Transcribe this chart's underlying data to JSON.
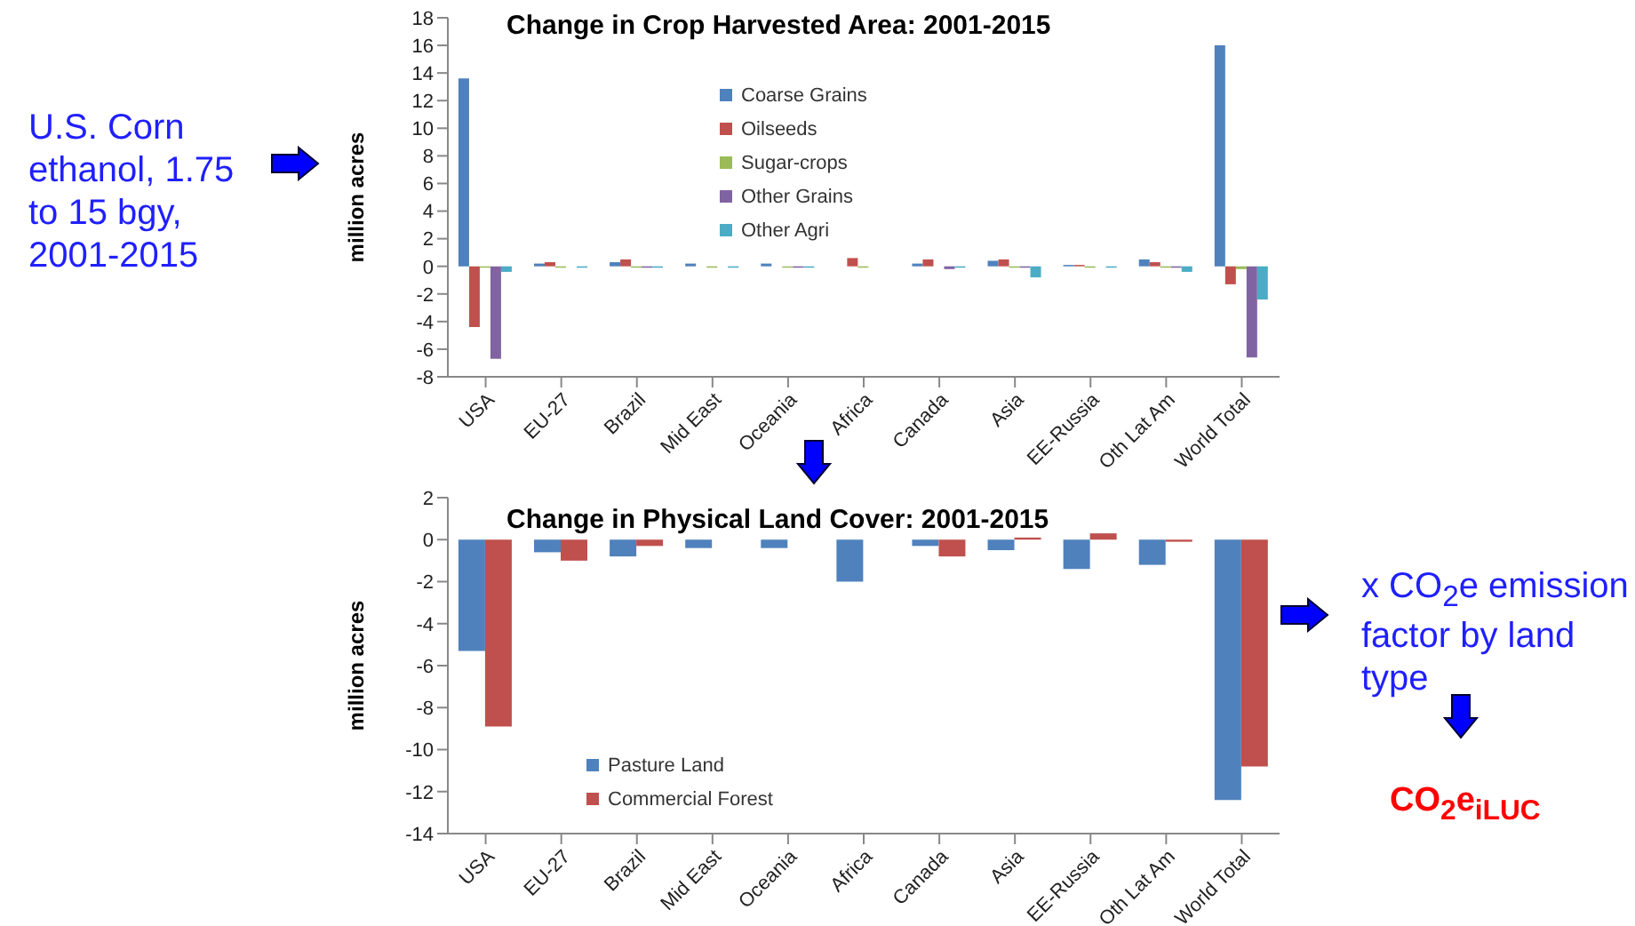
{
  "chart_data": [
    {
      "type": "bar",
      "title": "Change in Crop Harvested Area: 2001-2015",
      "ylabel": "million acres",
      "categories": [
        "USA",
        "EU-27",
        "Brazil",
        "Mid East",
        "Oceania",
        "Africa",
        "Canada",
        "Asia",
        "EE-Russia",
        "Oth Lat Am",
        "World Total"
      ],
      "series": [
        {
          "name": "Coarse Grains",
          "color": "#4f81bd",
          "values": [
            13.6,
            0.2,
            0.3,
            0.2,
            0.2,
            0,
            0.2,
            0.4,
            0.1,
            0.5,
            16.0
          ]
        },
        {
          "name": "Oilseeds",
          "color": "#c0504d",
          "values": [
            -4.4,
            0.3,
            0.5,
            0,
            0,
            0.6,
            0.5,
            0.5,
            0.1,
            0.3,
            -1.3
          ]
        },
        {
          "name": "Sugar-crops",
          "color": "#9bbb59",
          "values": [
            -0.1,
            -0.1,
            -0.1,
            -0.1,
            -0.1,
            -0.1,
            0,
            -0.1,
            -0.1,
            -0.1,
            -0.2
          ]
        },
        {
          "name": "Other Grains",
          "color": "#8064a2",
          "values": [
            -6.7,
            0,
            -0.1,
            0,
            -0.1,
            0,
            -0.2,
            -0.1,
            0,
            -0.1,
            -6.6
          ]
        },
        {
          "name": "Other Agri",
          "color": "#4bacc6",
          "values": [
            -0.4,
            -0.1,
            -0.1,
            -0.1,
            -0.1,
            0,
            -0.1,
            -0.8,
            -0.1,
            -0.4,
            -2.4
          ]
        }
      ],
      "ylim": [
        -8,
        18
      ],
      "yticks": [
        -8,
        -6,
        -4,
        -2,
        0,
        2,
        4,
        6,
        8,
        10,
        12,
        14,
        16,
        18
      ],
      "grid": false,
      "legend": "top",
      "annotations": [
        "U.S. Corn ethanol, 1.75 to 15 bgy, 2001-2015"
      ]
    },
    {
      "type": "bar",
      "title": "Change in Physical Land Cover: 2001-2015",
      "ylabel": "million acres",
      "categories": [
        "USA",
        "EU-27",
        "Brazil",
        "Mid East",
        "Oceania",
        "Africa",
        "Canada",
        "Asia",
        "EE-Russia",
        "Oth Lat Am",
        "World Total"
      ],
      "series": [
        {
          "name": "Pasture Land",
          "color": "#4f81bd",
          "values": [
            -5.3,
            -0.6,
            -0.8,
            -0.4,
            -0.4,
            -2.0,
            -0.3,
            -0.5,
            -1.4,
            -1.2,
            -12.4
          ]
        },
        {
          "name": "Commercial Forest",
          "color": "#c0504d",
          "values": [
            -8.9,
            -1.0,
            -0.3,
            0,
            0,
            0,
            -0.8,
            0.1,
            0.3,
            -0.1,
            -10.8
          ]
        }
      ],
      "ylim": [
        -14,
        2
      ],
      "yticks": [
        -14,
        -12,
        -10,
        -8,
        -6,
        -4,
        -2,
        0,
        2
      ],
      "grid": false,
      "legend": "bottom left",
      "annotations": [
        "x CO$_{2}$e emission factor by land type",
        "CO$_{2}$e$_{iLUC}$"
      ]
    }
  ]
}
